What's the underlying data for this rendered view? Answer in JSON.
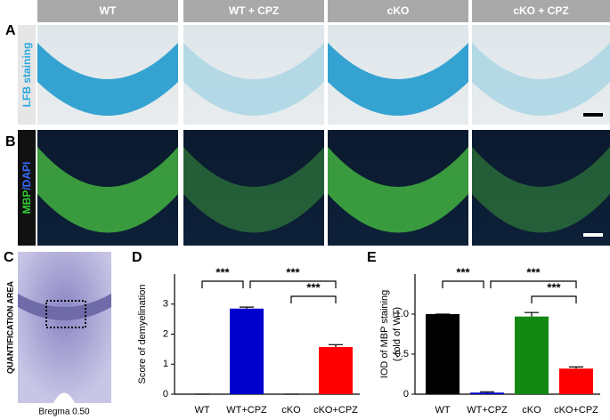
{
  "panel_labels": [
    "A",
    "B",
    "C",
    "D",
    "E"
  ],
  "columns": [
    "WT",
    "WT + CPZ",
    "cKO",
    "cKO + CPZ"
  ],
  "row_a_label": "LFB staining",
  "row_b_label": [
    "MBP",
    "/DAPI"
  ],
  "panel_c": {
    "label": "QUANTIFICATION AREA",
    "caption": "Bregma 0.50"
  },
  "chart_data": [
    {
      "type": "bar",
      "ylabel": "Score of demyelination",
      "categories": [
        "WT",
        "WT+CPZ",
        "cKO",
        "cKO+CPZ"
      ],
      "values": [
        0,
        2.85,
        0,
        1.57
      ],
      "errors": [
        0,
        0.05,
        0,
        0.08
      ],
      "colors": [
        "#000000",
        "#0000cc",
        "#118811",
        "#ff0000"
      ],
      "ylim": [
        0,
        4
      ],
      "yticks": [
        0,
        1,
        2,
        3
      ],
      "annotations": [
        "***",
        "***",
        "***"
      ]
    },
    {
      "type": "bar",
      "ylabel": [
        "IOD of MBP staining",
        "(-fold of WT)"
      ],
      "categories": [
        "WT",
        "WT+CPZ",
        "cKO",
        "cKO+CPZ"
      ],
      "values": [
        1.0,
        0.02,
        0.97,
        0.32
      ],
      "errors": [
        0,
        0.01,
        0.05,
        0.02
      ],
      "colors": [
        "#000000",
        "#0000cc",
        "#118811",
        "#ff0000"
      ],
      "ylim": [
        0,
        1.5
      ],
      "yticks": [
        0,
        0.5,
        {
          "value": 1,
          "label": "1.0"
        }
      ],
      "annotations": [
        "***",
        "***",
        "***"
      ]
    }
  ]
}
